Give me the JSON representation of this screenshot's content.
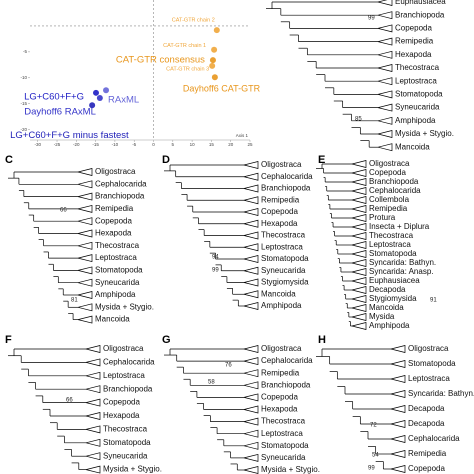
{
  "scatter": {
    "xlim": [
      -32,
      25
    ],
    "ylim": [
      5,
      -22
    ],
    "xticks": [
      -30,
      -25,
      -20,
      -15,
      -10,
      -5,
      0,
      5,
      10,
      15,
      20,
      25
    ],
    "yticks": [
      -5,
      -10,
      -15,
      -20
    ],
    "axis_label": "Axis 1",
    "points": [
      {
        "label": "CAT-GTR chain 2",
        "x": 16.4,
        "y": -0.8,
        "color": "#f0a63a"
      },
      {
        "label": "CAT-GTR chain 1",
        "x": 15.7,
        "y": -4.6,
        "color": "#f0a63a"
      },
      {
        "label": "CAT-GTR chain 3",
        "x": 15.2,
        "y": -7.7,
        "color": "#f0a63a"
      },
      {
        "label": "CAT-GTR consensus",
        "x": 15.4,
        "y": -6.6,
        "color": "#e8961c"
      },
      {
        "label": "Dayhoff6 CAT-GTR",
        "x": 15.9,
        "y": -9.9,
        "color": "#e8961c"
      },
      {
        "label": "LG+C60+F+G",
        "x": -14.9,
        "y": -12.9,
        "color": "#1c1cc4"
      },
      {
        "label": "RAxML",
        "x": -12.3,
        "y": -12.4,
        "color": "#6464d8"
      },
      {
        "label": "Dayhoff6 RAxML",
        "x": -13.9,
        "y": -13.9,
        "color": "#3434c8"
      },
      {
        "label": "LG+C60+F+G minus fastest",
        "x": -15.9,
        "y": -15.3,
        "color": "#2020b8"
      }
    ]
  },
  "panels": [
    {
      "taxa": [
        "Euphausiacea",
        "Branchiopoda",
        "Copepoda",
        "Remipedia",
        "Hexapoda",
        "Thecostraca",
        "Leptostraca",
        "Stomatopoda",
        "Syneucarida",
        "Amphipoda",
        "Mysida + Stygio.",
        "Mancoida"
      ],
      "supports": [
        99,
        85
      ]
    },
    {
      "letter": "C",
      "taxa": [
        "Oligostraca",
        "Cephalocarida",
        "Branchiopoda",
        "Remipedia",
        "Copepoda",
        "Hexapoda",
        "Thecostraca",
        "Leptostraca",
        "Stomatopoda",
        "Syneucarida",
        "Amphipoda",
        "Mysida + Stygio.",
        "Mancoida"
      ],
      "supports": [
        66,
        81
      ]
    },
    {
      "letter": "D",
      "taxa": [
        "Oligostraca",
        "Cephalocarida",
        "Branchiopoda",
        "Remipedia",
        "Copepoda",
        "Hexapoda",
        "Thecostraca",
        "Leptostraca",
        "Stomatopoda",
        "Syneucarida",
        "Stygiomysida",
        "Mancoida",
        "Amphipoda"
      ],
      "supports": [
        94,
        99
      ]
    },
    {
      "letter": "E",
      "taxa": [
        "Oligostraca",
        "Copepoda",
        "Branchiopoda",
        "Cephalocarida",
        "Collembola",
        "Remipedia",
        "Protura",
        "Insecta + Diplura",
        "Thecostraca",
        "Leptostraca",
        "Stomatopoda",
        "Syncarida: Bathyn.",
        "Syncarida: Anasp.",
        "Euphausiacea",
        "Decapoda",
        "Stygiomysida",
        "Mancoida",
        "Mysida",
        "Amphipoda"
      ],
      "supports": [
        91
      ]
    },
    {
      "letter": "F",
      "taxa": [
        "Oligostraca",
        "Cephalocarida",
        "Leptostraca",
        "Branchiopoda",
        "Copepoda",
        "Hexapoda",
        "Thecostraca",
        "Stomatopoda",
        "Syneucarida",
        "Mysida + Stygio."
      ],
      "supports": [
        66
      ]
    },
    {
      "letter": "G",
      "taxa": [
        "Oligostraca",
        "Cephalocarida",
        "Remipedia",
        "Branchiopoda",
        "Copepoda",
        "Hexapoda",
        "Thecostraca",
        "Leptostraca",
        "Stomatopoda",
        "Syneucarida",
        "Mysida + Stygio."
      ],
      "supports": [
        76,
        58
      ]
    },
    {
      "letter": "H",
      "taxa": [
        "Oligostraca",
        "Stomatopoda",
        "Leptostraca",
        "Syncarida: Bathyn.",
        "Decapoda",
        "Decapoda",
        "Cephalocarida",
        "Remipedia",
        "Copepoda"
      ],
      "supports": [
        72,
        54,
        99
      ]
    }
  ]
}
